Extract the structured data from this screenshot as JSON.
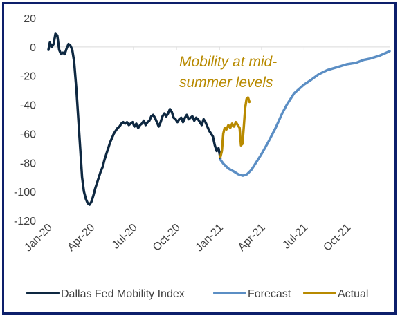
{
  "chart_data": {
    "type": "line",
    "title": "",
    "xlabel": "",
    "ylabel": "",
    "ylim": [
      -120,
      20
    ],
    "yticks": [
      20,
      0,
      -20,
      -40,
      -60,
      -80,
      -100,
      -120
    ],
    "xlim": [
      "2020-01-01",
      "2021-12-31"
    ],
    "xticks": [
      "Jan-20",
      "Apr-20",
      "Jul-20",
      "Oct-20",
      "Jan-21",
      "Apr-21",
      "Jul-21",
      "Oct-21"
    ],
    "grid": false,
    "legend_position": "bottom",
    "annotation": "Mobility at mid-summer levels",
    "series": [
      {
        "name": "Dallas Fed Mobility Index",
        "color": "#0e2841",
        "points": [
          [
            "2020-01-01",
            -2
          ],
          [
            "2020-01-04",
            3
          ],
          [
            "2020-01-08",
            0
          ],
          [
            "2020-01-12",
            2
          ],
          [
            "2020-01-16",
            9
          ],
          [
            "2020-01-20",
            8
          ],
          [
            "2020-01-24",
            -2
          ],
          [
            "2020-01-28",
            -5
          ],
          [
            "2020-02-01",
            -4
          ],
          [
            "2020-02-05",
            -5
          ],
          [
            "2020-02-09",
            -1
          ],
          [
            "2020-02-13",
            2
          ],
          [
            "2020-02-17",
            1
          ],
          [
            "2020-02-21",
            -2
          ],
          [
            "2020-02-25",
            -10
          ],
          [
            "2020-03-01",
            -30
          ],
          [
            "2020-03-05",
            -50
          ],
          [
            "2020-03-09",
            -70
          ],
          [
            "2020-03-13",
            -90
          ],
          [
            "2020-03-17",
            -100
          ],
          [
            "2020-03-21",
            -105
          ],
          [
            "2020-03-25",
            -108
          ],
          [
            "2020-03-29",
            -109
          ],
          [
            "2020-04-02",
            -107
          ],
          [
            "2020-04-06",
            -103
          ],
          [
            "2020-04-10",
            -98
          ],
          [
            "2020-04-14",
            -94
          ],
          [
            "2020-04-18",
            -90
          ],
          [
            "2020-04-22",
            -86
          ],
          [
            "2020-04-26",
            -83
          ],
          [
            "2020-04-30",
            -78
          ],
          [
            "2020-05-04",
            -74
          ],
          [
            "2020-05-08",
            -70
          ],
          [
            "2020-05-12",
            -66
          ],
          [
            "2020-05-16",
            -63
          ],
          [
            "2020-05-20",
            -60
          ],
          [
            "2020-05-24",
            -58
          ],
          [
            "2020-05-28",
            -56
          ],
          [
            "2020-06-01",
            -55
          ],
          [
            "2020-06-05",
            -53
          ],
          [
            "2020-06-09",
            -52
          ],
          [
            "2020-06-13",
            -53
          ],
          [
            "2020-06-17",
            -52
          ],
          [
            "2020-06-21",
            -54
          ],
          [
            "2020-06-25",
            -53
          ],
          [
            "2020-06-29",
            -52
          ],
          [
            "2020-07-03",
            -55
          ],
          [
            "2020-07-07",
            -53
          ],
          [
            "2020-07-11",
            -56
          ],
          [
            "2020-07-15",
            -54
          ],
          [
            "2020-07-19",
            -53
          ],
          [
            "2020-07-23",
            -51
          ],
          [
            "2020-07-27",
            -54
          ],
          [
            "2020-07-31",
            -52
          ],
          [
            "2020-08-04",
            -51
          ],
          [
            "2020-08-08",
            -48
          ],
          [
            "2020-08-12",
            -47
          ],
          [
            "2020-08-16",
            -49
          ],
          [
            "2020-08-20",
            -52
          ],
          [
            "2020-08-24",
            -55
          ],
          [
            "2020-08-28",
            -52
          ],
          [
            "2020-09-01",
            -48
          ],
          [
            "2020-09-05",
            -46
          ],
          [
            "2020-09-09",
            -48
          ],
          [
            "2020-09-13",
            -46
          ],
          [
            "2020-09-17",
            -43
          ],
          [
            "2020-09-21",
            -45
          ],
          [
            "2020-09-25",
            -49
          ],
          [
            "2020-09-29",
            -50
          ],
          [
            "2020-10-03",
            -52
          ],
          [
            "2020-10-07",
            -50
          ],
          [
            "2020-10-11",
            -49
          ],
          [
            "2020-10-15",
            -52
          ],
          [
            "2020-10-19",
            -49
          ],
          [
            "2020-10-23",
            -47
          ],
          [
            "2020-10-27",
            -50
          ],
          [
            "2020-10-31",
            -49
          ],
          [
            "2020-11-04",
            -48
          ],
          [
            "2020-11-08",
            -51
          ],
          [
            "2020-11-12",
            -49
          ],
          [
            "2020-11-16",
            -50
          ],
          [
            "2020-11-20",
            -52
          ],
          [
            "2020-11-24",
            -54
          ],
          [
            "2020-11-28",
            -50
          ],
          [
            "2020-12-02",
            -52
          ],
          [
            "2020-12-06",
            -55
          ],
          [
            "2020-12-10",
            -58
          ],
          [
            "2020-12-14",
            -60
          ],
          [
            "2020-12-18",
            -62
          ],
          [
            "2020-12-22",
            -68
          ],
          [
            "2020-12-26",
            -72
          ],
          [
            "2020-12-30",
            -70
          ],
          [
            "2021-01-03",
            -77
          ]
        ]
      },
      {
        "name": "Forecast",
        "color": "#5b8ec4",
        "points": [
          [
            "2021-01-03",
            -78
          ],
          [
            "2021-01-10",
            -81
          ],
          [
            "2021-01-20",
            -84
          ],
          [
            "2021-01-31",
            -86
          ],
          [
            "2021-02-10",
            -88
          ],
          [
            "2021-02-20",
            -89
          ],
          [
            "2021-03-01",
            -88
          ],
          [
            "2021-03-10",
            -85
          ],
          [
            "2021-03-20",
            -80
          ],
          [
            "2021-04-01",
            -74
          ],
          [
            "2021-04-15",
            -66
          ],
          [
            "2021-05-01",
            -56
          ],
          [
            "2021-05-15",
            -46
          ],
          [
            "2021-05-25",
            -40
          ],
          [
            "2021-06-10",
            -32
          ],
          [
            "2021-07-01",
            -26
          ],
          [
            "2021-07-15",
            -23
          ],
          [
            "2021-08-01",
            -19
          ],
          [
            "2021-08-20",
            -16
          ],
          [
            "2021-09-10",
            -14
          ],
          [
            "2021-09-30",
            -12
          ],
          [
            "2021-10-20",
            -11
          ],
          [
            "2021-11-05",
            -9
          ],
          [
            "2021-11-20",
            -8
          ],
          [
            "2021-12-10",
            -6
          ],
          [
            "2021-12-31",
            -3
          ]
        ]
      },
      {
        "name": "Actual",
        "color": "#b88a00",
        "points": [
          [
            "2021-01-03",
            -76
          ],
          [
            "2021-01-06",
            -72
          ],
          [
            "2021-01-09",
            -60
          ],
          [
            "2021-01-12",
            -56
          ],
          [
            "2021-01-16",
            -57
          ],
          [
            "2021-01-20",
            -54
          ],
          [
            "2021-01-24",
            -56
          ],
          [
            "2021-01-28",
            -53
          ],
          [
            "2021-02-01",
            -55
          ],
          [
            "2021-02-05",
            -52
          ],
          [
            "2021-02-09",
            -54
          ],
          [
            "2021-02-13",
            -56
          ],
          [
            "2021-02-16",
            -68
          ],
          [
            "2021-02-19",
            -67
          ],
          [
            "2021-02-22",
            -55
          ],
          [
            "2021-02-25",
            -42
          ],
          [
            "2021-02-28",
            -36
          ],
          [
            "2021-03-03",
            -35
          ],
          [
            "2021-03-06",
            -38
          ]
        ]
      }
    ]
  }
}
